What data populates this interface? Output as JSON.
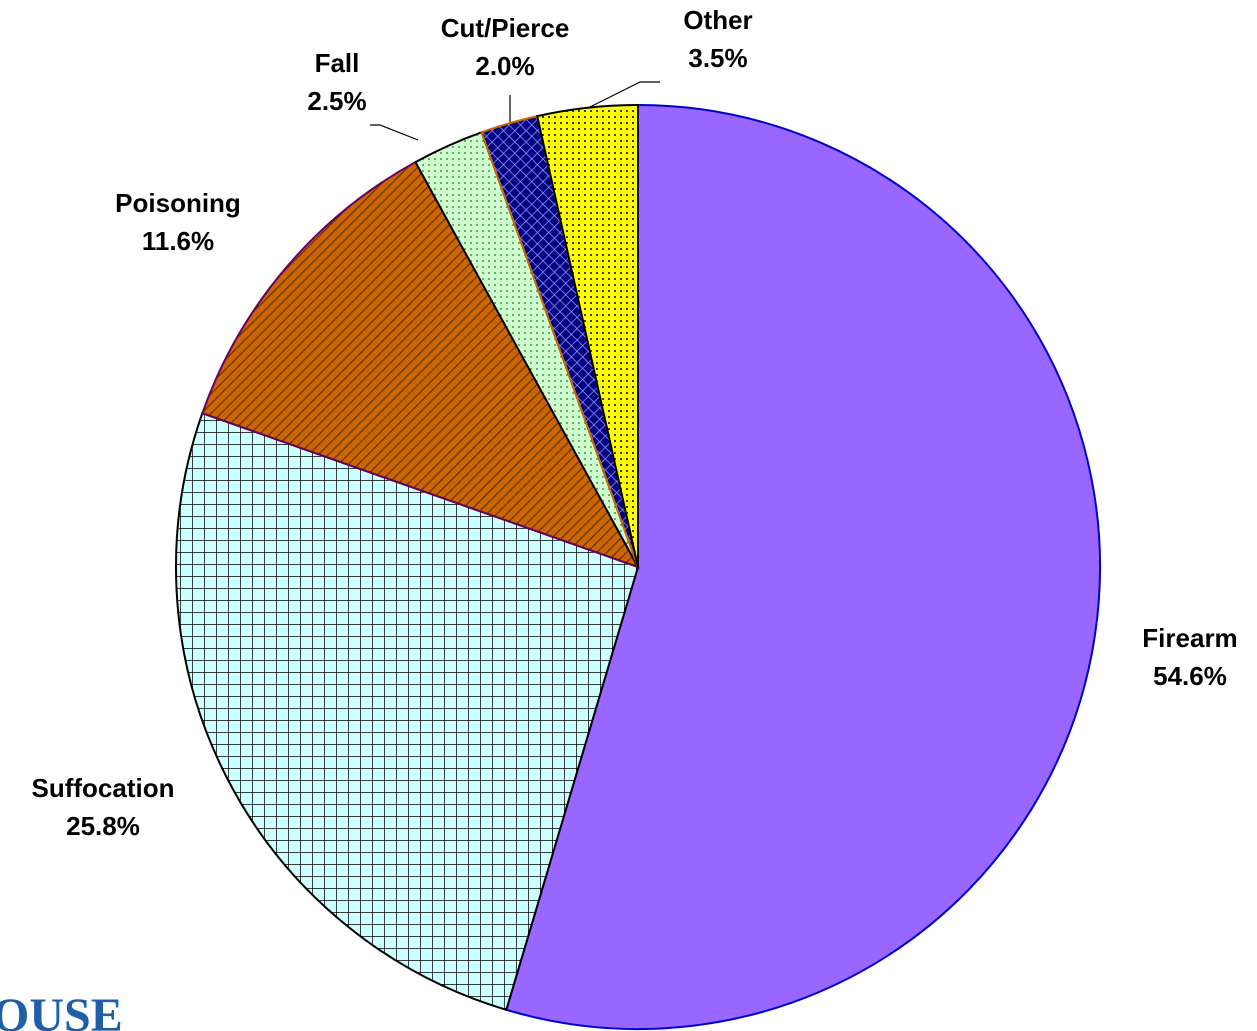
{
  "chart_data": {
    "type": "pie",
    "categories": [
      "Firearm",
      "Suffocation",
      "Poisoning",
      "Fall",
      "Cut/Pierce",
      "Other"
    ],
    "values": [
      54.6,
      25.8,
      11.6,
      2.5,
      2.0,
      3.5
    ],
    "value_labels": [
      "54.6%",
      "25.8%",
      "11.6%",
      "2.5%",
      "2.0%",
      "3.5%"
    ],
    "colors": [
      "#9966ff",
      "#ccffff",
      "#cc6600",
      "#ccffcc",
      "#000080",
      "#ffff00"
    ],
    "logo_text": "OUSE"
  }
}
